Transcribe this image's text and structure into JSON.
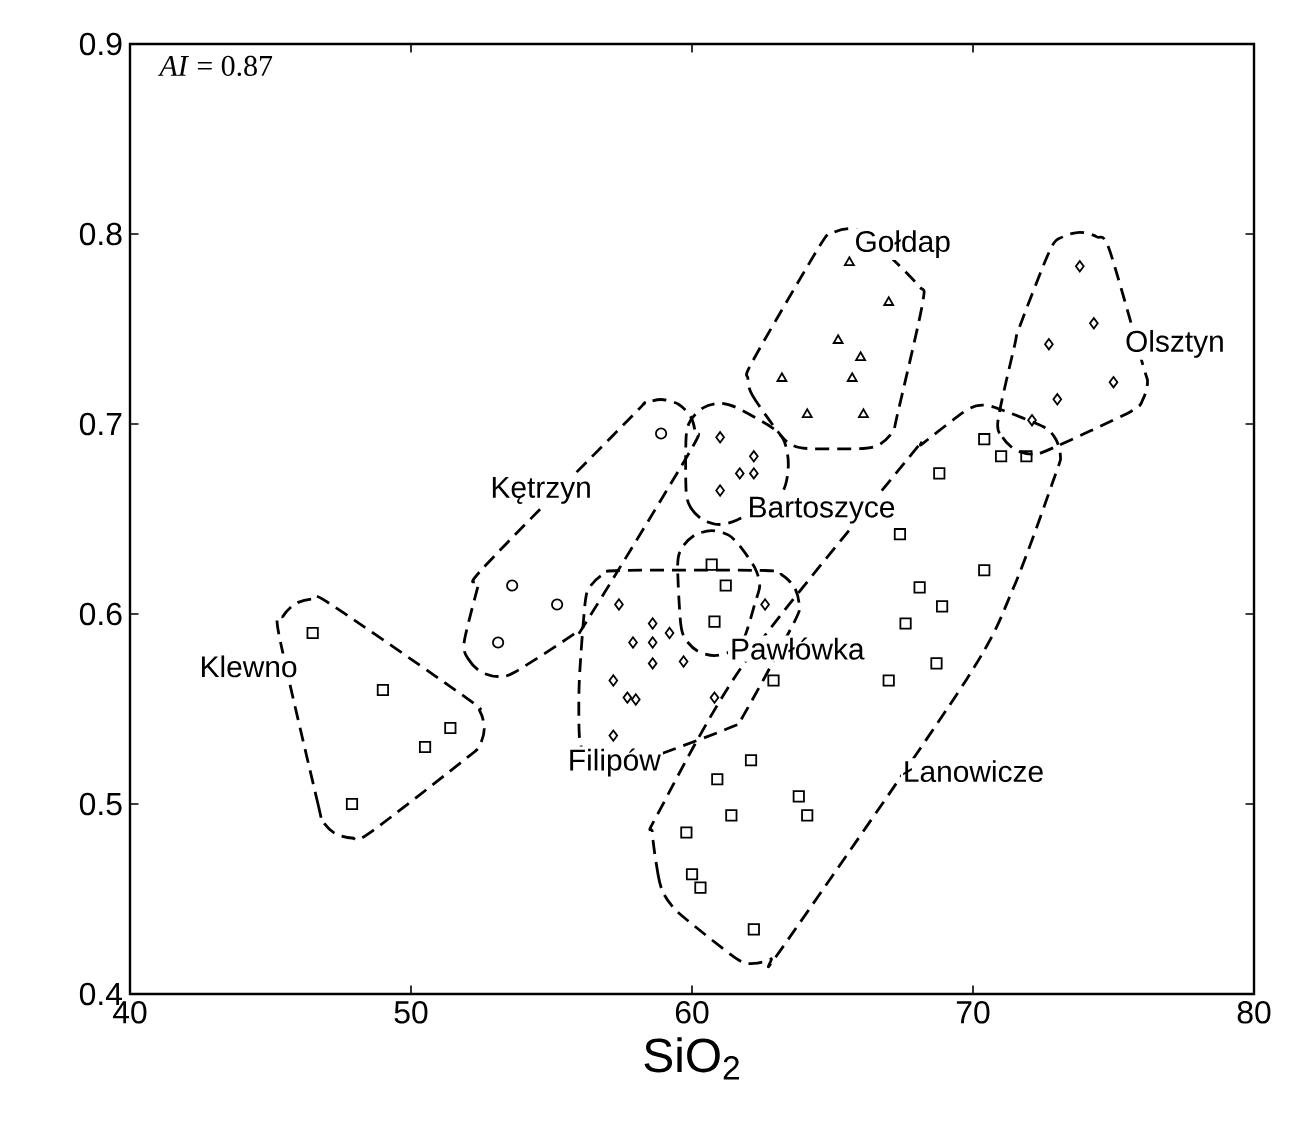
{
  "chart_data": {
    "type": "scatter",
    "xlabel": "SiO$_{2}$",
    "xlim": [
      40,
      80
    ],
    "ylim": [
      0.4,
      0.9
    ],
    "xticks": [
      40,
      50,
      60,
      70,
      80
    ],
    "yticks": [
      0.4,
      0.5,
      0.6,
      0.7,
      0.8,
      0.9
    ],
    "series": [
      {
        "name": "Klewno",
        "color": "#000000",
        "marker": "square",
        "x": [
          46.5,
          49.0,
          50.5,
          51.4,
          47.9
        ],
        "values": [
          0.59,
          0.56,
          0.53,
          0.54,
          0.5
        ]
      },
      {
        "name": "Kętrzyn",
        "color": "#000000",
        "marker": "circle",
        "x": [
          53.6,
          55.2,
          53.1,
          58.9
        ],
        "values": [
          0.615,
          0.605,
          0.585,
          0.695
        ]
      },
      {
        "name": "Filipów",
        "color": "#000000",
        "marker": "diamond",
        "x": [
          57.4,
          58.6,
          57.9,
          58.6,
          59.7,
          58.6,
          57.2,
          58.0,
          57.7,
          57.2,
          62.6,
          60.8,
          59.2
        ],
        "values": [
          0.605,
          0.595,
          0.585,
          0.585,
          0.575,
          0.574,
          0.565,
          0.555,
          0.556,
          0.536,
          0.605,
          0.556,
          0.59
        ]
      },
      {
        "name": "Bartoszyce",
        "color": "#000000",
        "marker": "diamond",
        "x": [
          61.0,
          62.2,
          61.7,
          62.2,
          61.0
        ],
        "values": [
          0.693,
          0.683,
          0.674,
          0.674,
          0.665
        ]
      },
      {
        "name": "Pawłówka",
        "color": "#000000",
        "marker": "square",
        "x": [
          60.7,
          61.2,
          60.8
        ],
        "values": [
          0.626,
          0.615,
          0.596
        ]
      },
      {
        "name": "Gołdap",
        "color": "#000000",
        "marker": "triangle",
        "x": [
          65.6,
          67.0,
          65.2,
          66.0,
          65.7,
          63.2,
          64.1,
          66.1
        ],
        "values": [
          0.785,
          0.764,
          0.744,
          0.735,
          0.724,
          0.724,
          0.705,
          0.705
        ]
      },
      {
        "name": "Olsztyn",
        "color": "#000000",
        "marker": "diamond",
        "x": [
          73.8,
          74.3,
          72.7,
          75.0,
          73.0,
          72.1
        ],
        "values": [
          0.783,
          0.753,
          0.742,
          0.722,
          0.713,
          0.702
        ]
      },
      {
        "name": "Łanowicze",
        "color": "#000000",
        "marker": "square",
        "x": [
          70.4,
          71.0,
          71.9,
          68.8,
          67.4,
          70.4,
          68.1,
          68.9,
          67.6,
          68.7,
          67.0,
          62.9,
          62.1,
          60.9,
          61.4,
          59.8,
          63.8,
          64.1,
          60.3,
          60.0,
          62.2
        ],
        "values": [
          0.692,
          0.683,
          0.683,
          0.674,
          0.642,
          0.623,
          0.614,
          0.604,
          0.595,
          0.574,
          0.565,
          0.565,
          0.523,
          0.513,
          0.494,
          0.485,
          0.504,
          0.494,
          0.456,
          0.463,
          0.434
        ]
      }
    ],
    "annotations": [
      "*AI* = 0.87"
    ]
  }
}
